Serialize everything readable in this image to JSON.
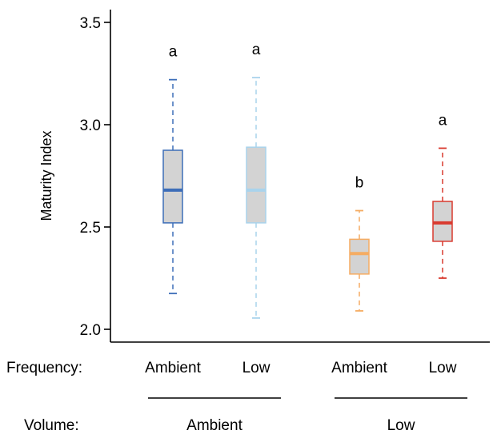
{
  "chart_data": {
    "type": "box",
    "ylabel": "Maturity Index",
    "ylim": [
      2.0,
      3.5
    ],
    "yticks": [
      "2.0",
      "2.5",
      "3.0",
      "3.5"
    ],
    "grid": false,
    "row_labels": {
      "frequency": "Frequency:",
      "volume": "Volume:"
    },
    "groups": [
      {
        "label": "Ambient",
        "boxes": [
          0,
          1
        ]
      },
      {
        "label": "Low",
        "boxes": [
          2,
          3
        ]
      }
    ],
    "boxes": [
      {
        "frequency": "Ambient",
        "volume": "Ambient",
        "min": 2.175,
        "q1": 2.52,
        "median": 2.68,
        "q3": 2.875,
        "max": 3.22,
        "sig": "a",
        "color": "#3d6eb8"
      },
      {
        "frequency": "Low",
        "volume": "Ambient",
        "min": 2.055,
        "q1": 2.52,
        "median": 2.68,
        "q3": 2.89,
        "max": 3.23,
        "sig": "a",
        "color": "#a9d3ec"
      },
      {
        "frequency": "Ambient",
        "volume": "Low",
        "min": 2.09,
        "q1": 2.27,
        "median": 2.37,
        "q3": 2.44,
        "max": 2.58,
        "sig": "b",
        "color": "#f5ac63"
      },
      {
        "frequency": "Low",
        "volume": "Low",
        "min": 2.25,
        "q1": 2.43,
        "median": 2.52,
        "q3": 2.625,
        "max": 2.885,
        "sig": "a",
        "color": "#d93a2f"
      }
    ],
    "box_fill": "#d3d3d3"
  }
}
